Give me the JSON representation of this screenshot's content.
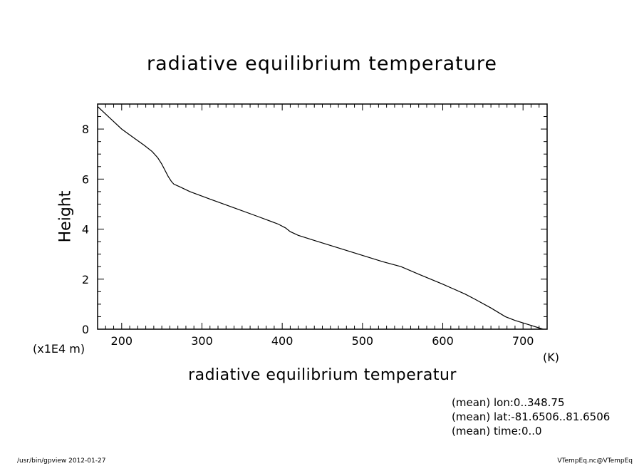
{
  "chart_data": {
    "type": "line",
    "title": "radiative equilibrium temperature",
    "xlabel": "radiative equilibrium temperatur",
    "ylabel": "Height",
    "x_unit": "(K)",
    "y_unit": "(x1E4 m)",
    "xlim": [
      170,
      730
    ],
    "ylim": [
      0,
      9
    ],
    "x_ticks": [
      200,
      300,
      400,
      500,
      600,
      700
    ],
    "y_ticks": [
      0,
      2,
      4,
      6,
      8
    ],
    "grid": false,
    "series": [
      {
        "x": [
          725,
          710,
          690,
          678,
          660,
          640,
          628,
          600,
          570,
          548,
          525,
          500,
          470,
          440,
          420,
          410,
          404,
          395,
          370,
          340,
          310,
          285,
          272,
          265,
          262,
          258,
          254,
          250,
          245,
          238,
          228,
          215,
          200,
          185,
          170
        ],
        "y": [
          0,
          0.15,
          0.35,
          0.5,
          0.85,
          1.2,
          1.4,
          1.8,
          2.2,
          2.5,
          2.7,
          2.95,
          3.25,
          3.55,
          3.75,
          3.9,
          4.05,
          4.2,
          4.5,
          4.85,
          5.2,
          5.5,
          5.7,
          5.8,
          5.9,
          6.1,
          6.35,
          6.6,
          6.85,
          7.1,
          7.35,
          7.65,
          8.0,
          8.45,
          8.9
        ]
      }
    ]
  },
  "info": {
    "lon": "(mean) lon:0..348.75",
    "lat": "(mean) lat:-81.6506..81.6506",
    "time": "(mean) time:0..0"
  },
  "footer": {
    "left": "/usr/bin/gpview   2012-01-27",
    "right": "VTempEq.nc@VTempEq"
  }
}
